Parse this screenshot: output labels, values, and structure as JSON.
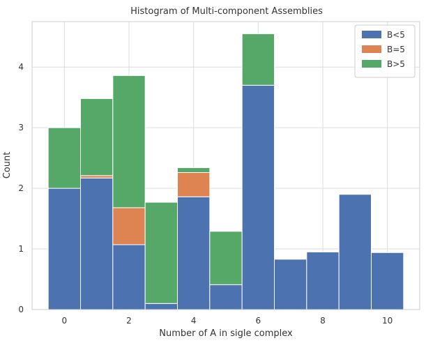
{
  "chart_data": {
    "type": "bar",
    "stacked": true,
    "title": "Histogram of Multi-component Assemblies",
    "xlabel": "Number of A in sigle complex",
    "ylabel": "Count",
    "xlim": [
      -1,
      11
    ],
    "ylim": [
      0,
      4.75
    ],
    "x": [
      0,
      1,
      2,
      3,
      4,
      5,
      6,
      7,
      8,
      9,
      10
    ],
    "bar_width": 1,
    "xticks": [
      0,
      2,
      4,
      6,
      8,
      10
    ],
    "xtick_labels": [
      "0",
      "2",
      "4",
      "6",
      "8",
      "10"
    ],
    "yticks": [
      0,
      1,
      2,
      3,
      4
    ],
    "ytick_labels": [
      "0",
      "1",
      "2",
      "3",
      "4"
    ],
    "grid": true,
    "legend": "top-right",
    "series": [
      {
        "name": "B<5",
        "color": "#4c72b0",
        "values": [
          2.0,
          2.17,
          1.07,
          0.1,
          1.86,
          0.41,
          3.7,
          0.83,
          0.95,
          1.9,
          0.94
        ]
      },
      {
        "name": "B=5",
        "color": "#dd8452",
        "values": [
          0,
          0.04,
          0.61,
          0,
          0.4,
          0,
          0,
          0,
          0,
          0,
          0
        ]
      },
      {
        "name": "B>5",
        "color": "#55a868",
        "values": [
          1.0,
          1.27,
          2.18,
          1.67,
          0.08,
          0.88,
          0.85,
          0,
          0,
          0,
          0
        ]
      }
    ]
  }
}
